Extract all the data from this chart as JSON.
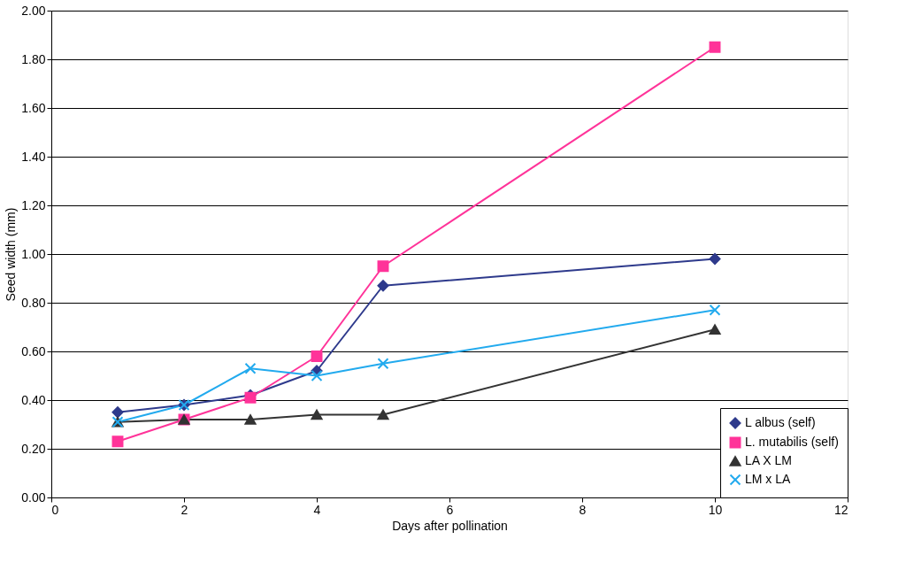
{
  "chart_data": {
    "type": "line",
    "xlabel": "Days after pollination",
    "ylabel": "Seed width (mm)",
    "x": [
      1,
      2,
      3,
      4,
      5,
      10
    ],
    "series": [
      {
        "name": "L albus (self)",
        "color": "#2e3a8c",
        "marker": "diamond",
        "values": [
          0.35,
          0.38,
          0.42,
          0.52,
          0.87,
          0.98
        ]
      },
      {
        "name": "L. mutabilis (self)",
        "color": "#ff3399",
        "marker": "square",
        "values": [
          0.23,
          0.32,
          0.41,
          0.58,
          0.95,
          1.85
        ]
      },
      {
        "name": "LA X LM",
        "color": "#333333",
        "marker": "triangle",
        "values": [
          0.31,
          0.32,
          0.32,
          0.34,
          0.34,
          0.69
        ]
      },
      {
        "name": "LM x LA",
        "color": "#22aaee",
        "marker": "cross",
        "values": [
          0.31,
          0.38,
          0.53,
          0.5,
          0.55,
          0.77
        ]
      }
    ],
    "xlim": [
      0,
      12
    ],
    "xticks": [
      0,
      2,
      4,
      6,
      8,
      10,
      12
    ],
    "ylim": [
      0,
      2
    ],
    "yticks": [
      {
        "value": 0,
        "label": "0.00"
      },
      {
        "value": 0.2,
        "label": "0.20"
      },
      {
        "value": 0.4,
        "label": "0.40"
      },
      {
        "value": 0.6,
        "label": "0.60"
      },
      {
        "value": 0.8,
        "label": "0.80"
      },
      {
        "value": 1.0,
        "label": "1.00"
      },
      {
        "value": 1.2,
        "label": "1.20"
      },
      {
        "value": 1.4,
        "label": "1.40"
      },
      {
        "value": 1.6,
        "label": "1.60"
      },
      {
        "value": 1.8,
        "label": "1.80"
      },
      {
        "value": 2.0,
        "label": "2.00"
      }
    ],
    "grid": "y",
    "legend": "bottom right",
    "line_style": "solid"
  }
}
